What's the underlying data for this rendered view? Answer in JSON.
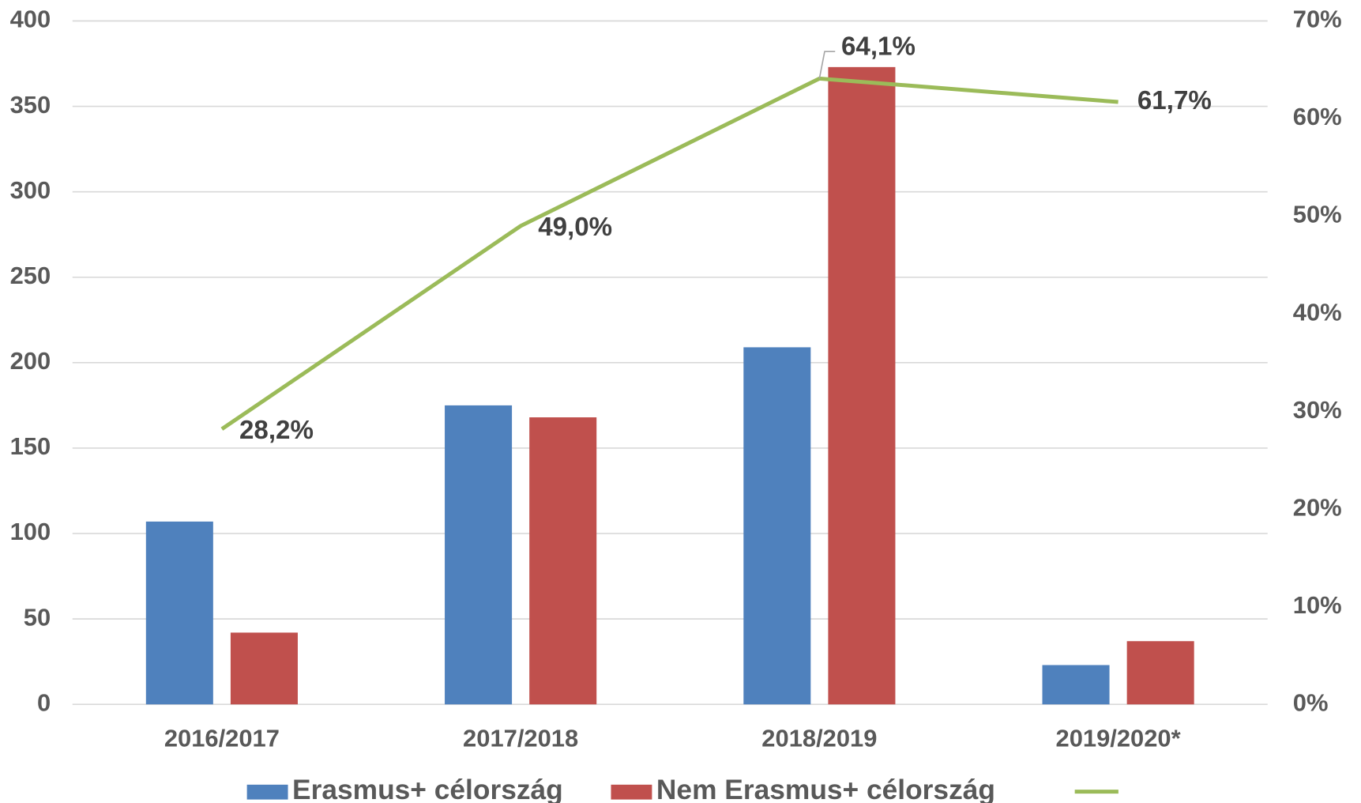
{
  "chart_data": {
    "type": "bar",
    "categories": [
      "2016/2017",
      "2017/2018",
      "2018/2019",
      "2019/2020*"
    ],
    "series": [
      {
        "name": "Erasmus+ célország",
        "color": "#4f81bd",
        "values": [
          107,
          175,
          209,
          23
        ]
      },
      {
        "name": "Nem Erasmus+ célország",
        "color": "#c0504d",
        "values": [
          42,
          168,
          373,
          37
        ]
      },
      {
        "type": "line",
        "axis": "y2",
        "color": "#9bbb59",
        "values": [
          28.2,
          49.0,
          64.1,
          61.7
        ],
        "value_labels": [
          "28,2%",
          "49,0%",
          "64,1%",
          "61,7%"
        ]
      }
    ],
    "ylim": [
      0,
      400
    ],
    "yticks": [
      0,
      50,
      100,
      150,
      200,
      250,
      300,
      350,
      400
    ],
    "y2lim": [
      0,
      70
    ],
    "y2ticks": [
      {
        "value": 0,
        "label": "0%"
      },
      {
        "value": 10,
        "label": "10%"
      },
      {
        "value": 20,
        "label": "20%"
      },
      {
        "value": 30,
        "label": "30%"
      },
      {
        "value": 40,
        "label": "40%"
      },
      {
        "value": 50,
        "label": "50%"
      },
      {
        "value": 60,
        "label": "60%"
      },
      {
        "value": 70,
        "label": "70%"
      }
    ],
    "grid": true,
    "legend": "bottom"
  }
}
